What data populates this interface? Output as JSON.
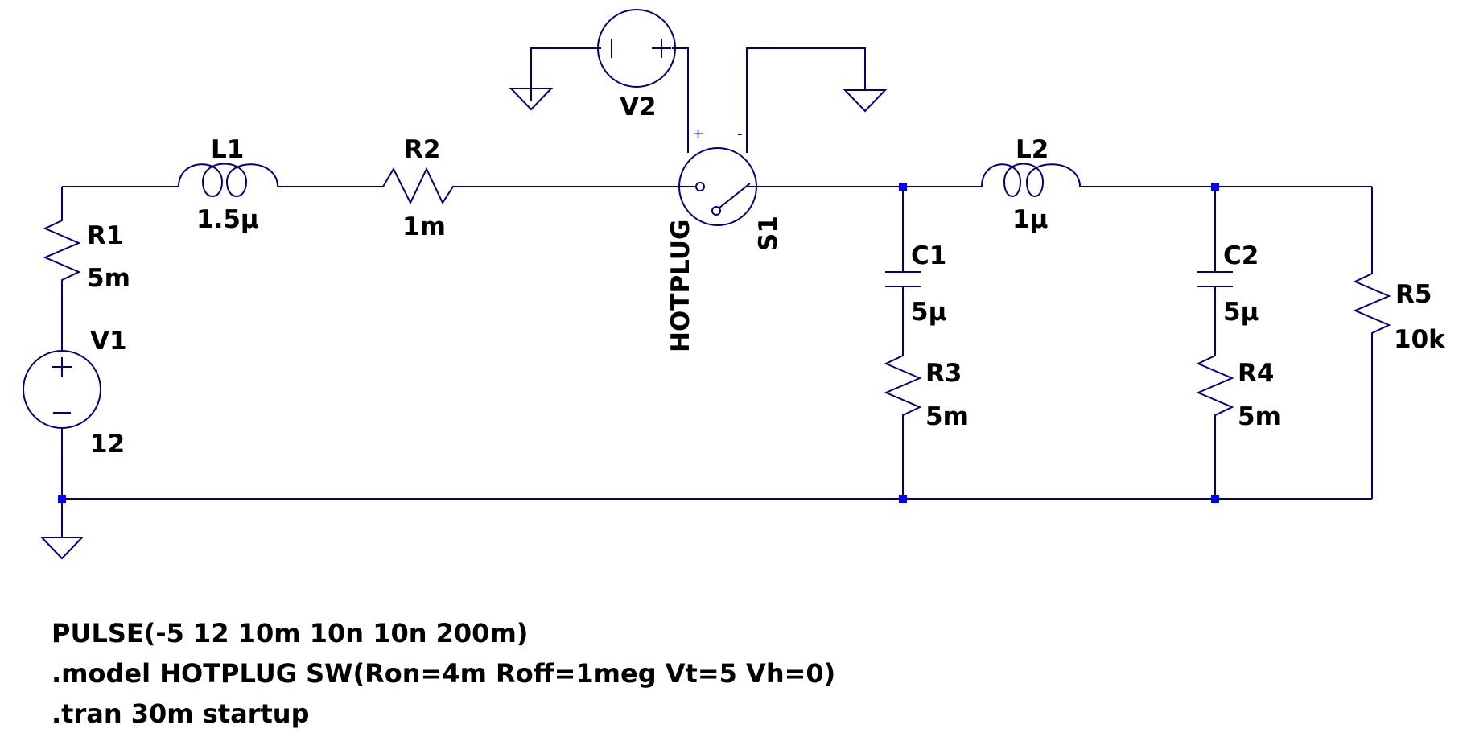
{
  "components": {
    "V1": {
      "name": "V1",
      "value": "12"
    },
    "V2": {
      "name": "V2"
    },
    "R1": {
      "name": "R1",
      "value": "5m"
    },
    "R2": {
      "name": "R2",
      "value": "1m"
    },
    "R3": {
      "name": "R3",
      "value": "5m"
    },
    "R4": {
      "name": "R4",
      "value": "5m"
    },
    "R5": {
      "name": "R5",
      "value": "10k"
    },
    "L1": {
      "name": "L1",
      "value": "1.5µ"
    },
    "L2": {
      "name": "L2",
      "value": "1µ"
    },
    "C1": {
      "name": "C1",
      "value": "5µ"
    },
    "C2": {
      "name": "C2",
      "value": "5µ"
    },
    "S1": {
      "name": "S1",
      "model": "HOTPLUG"
    }
  },
  "pin_marks": {
    "plus": "+",
    "minus": "-"
  },
  "directives": {
    "pulse": "PULSE(-5 12 10m 10n 10n 200m)",
    "model": ".model HOTPLUG SW(Ron=4m Roff=1meg Vt=5 Vh=0)",
    "tran": ".tran 30m startup"
  },
  "colors": {
    "wire": "#000080",
    "junction": "#0000ff",
    "text": "#000000"
  }
}
